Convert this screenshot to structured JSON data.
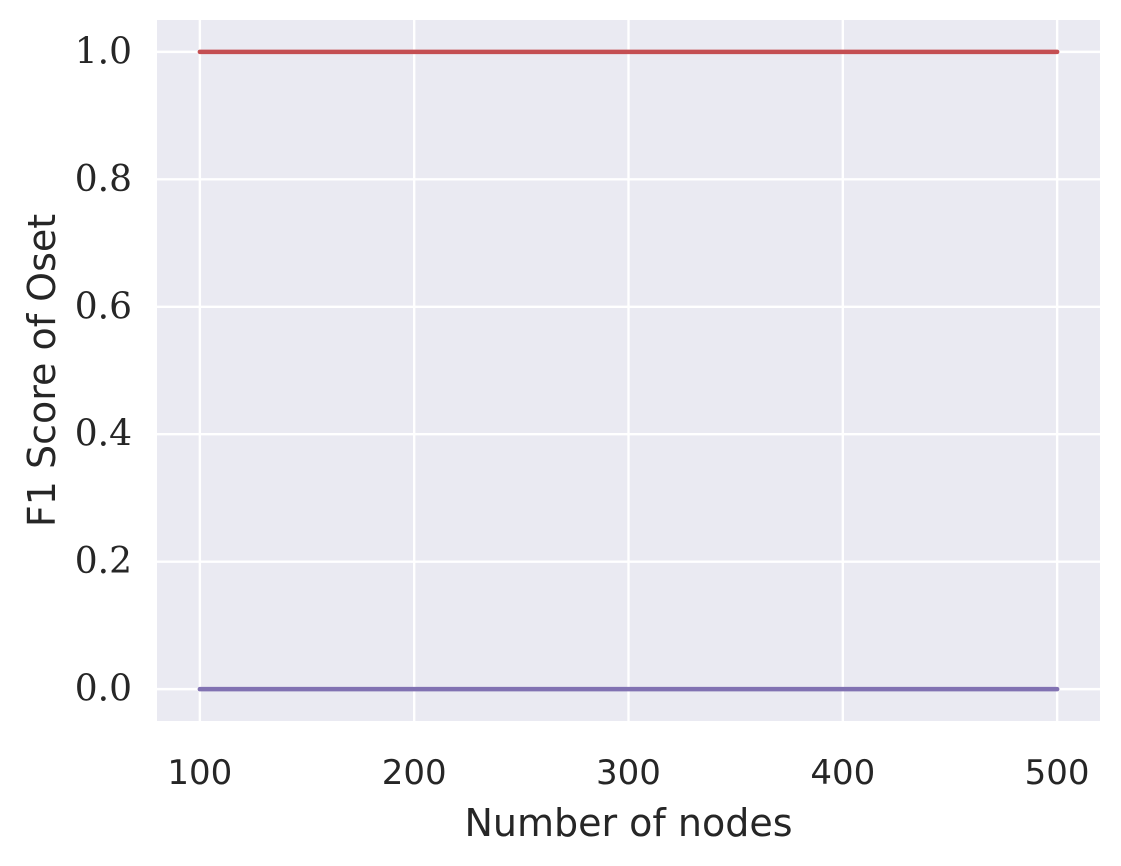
{
  "chart_data": {
    "type": "line",
    "title": "",
    "xlabel": "Number of nodes",
    "ylabel": "F1 Score of Oset",
    "xlim": [
      80,
      520
    ],
    "ylim": [
      -0.05,
      1.05
    ],
    "x_ticks": [
      100,
      200,
      300,
      400,
      500
    ],
    "x_tick_labels": [
      "100",
      "200",
      "300",
      "400",
      "500"
    ],
    "y_ticks": [
      0.0,
      0.2,
      0.4,
      0.6,
      0.8,
      1.0
    ],
    "y_tick_labels": [
      "0.0",
      "0.2",
      "0.4",
      "0.6",
      "0.8",
      "1.0"
    ],
    "grid": true,
    "legend": "none",
    "series": [
      {
        "color": "#c44e52",
        "x": [
          100,
          200,
          300,
          400,
          500
        ],
        "y": [
          1.0,
          1.0,
          1.0,
          1.0,
          1.0
        ]
      },
      {
        "color": "#8172b2",
        "x": [
          100,
          200,
          300,
          400,
          500
        ],
        "y": [
          0.0,
          0.0,
          0.0,
          0.0,
          0.0
        ]
      }
    ],
    "colors": {
      "background": "#eaeaf2",
      "grid": "#ffffff",
      "text": "#262626"
    }
  }
}
